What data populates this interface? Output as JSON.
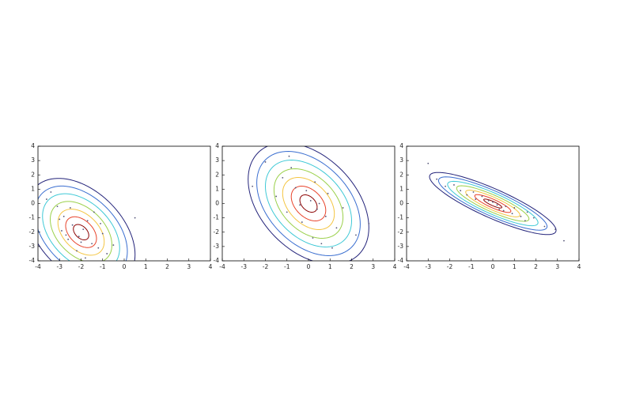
{
  "chart_data": [
    {
      "type": "contour",
      "x": [
        -2.1,
        -1.5,
        -2.8,
        -2.4,
        -1.2,
        -3.1,
        -1.9,
        -2.6,
        -0.8,
        -1.7,
        -3.4,
        -2.2,
        -1.0,
        -2.9,
        -0.5,
        -1.4,
        -2.5,
        -3.6,
        -2.0,
        -1.8,
        0.5,
        -2.7,
        -1.1,
        -3.0
      ],
      "y": [
        -2.3,
        -2.8,
        -0.9,
        -1.5,
        -3.1,
        -0.2,
        -1.8,
        -2.5,
        -3.5,
        -1.2,
        0.8,
        -3.3,
        -2.1,
        -1.9,
        -2.9,
        -0.6,
        -0.3,
        0.3,
        -2.7,
        -3.8,
        -1.0,
        -2.2,
        -1.4,
        -1.1
      ],
      "mean": [
        -2,
        -2
      ],
      "cov": [
        [
          0.8,
          -0.5
        ],
        [
          -0.5,
          1.8
        ]
      ],
      "levels": [
        0.4,
        0.8,
        1.2,
        1.6,
        2.0,
        2.4,
        2.8
      ],
      "colors": [
        "#8b0000",
        "#e8432b",
        "#f4c542",
        "#9ad04a",
        "#3fc9d6",
        "#3a6ed0",
        "#23237a"
      ],
      "point_color": "#555577",
      "xlim": [
        -4,
        4
      ],
      "ylim": [
        -4,
        4
      ],
      "xticks": [
        -4,
        -3,
        -2,
        -1,
        0,
        1,
        2,
        3,
        4
      ],
      "yticks": [
        -4,
        -3,
        -2,
        -1,
        0,
        1,
        2,
        3,
        4
      ]
    },
    {
      "type": "contour",
      "x": [
        0.1,
        -0.6,
        0.8,
        -1.2,
        0.4,
        -0.3,
        1.3,
        -1.5,
        0.9,
        -0.8,
        0.2,
        1.6,
        -0.1,
        -2.0,
        0.6,
        2.2,
        -1.0,
        0.3,
        -0.4,
        1.1,
        -2.6,
        2.8,
        -0.9,
        0.5
      ],
      "y": [
        0.2,
        1.1,
        -0.9,
        1.8,
        -0.4,
        -1.3,
        -1.7,
        0.5,
        0.7,
        2.5,
        -2.4,
        -0.3,
        0.9,
        2.9,
        -2.8,
        -2.2,
        -0.6,
        1.5,
        -0.1,
        -3.1,
        1.2,
        -1.4,
        3.3,
        0.0
      ],
      "mean": [
        0,
        0
      ],
      "cov": [
        [
          1.0,
          -0.6
        ],
        [
          -0.6,
          2.3
        ]
      ],
      "levels": [
        0.4,
        0.8,
        1.2,
        1.6,
        2.0,
        2.4,
        2.8
      ],
      "colors": [
        "#8b0000",
        "#e8432b",
        "#f4c542",
        "#9ad04a",
        "#3fc9d6",
        "#3a6ed0",
        "#23237a"
      ],
      "point_color": "#555577",
      "xlim": [
        -4,
        4
      ],
      "ylim": [
        -4,
        4
      ],
      "xticks": [
        -4,
        -3,
        -2,
        -1,
        0,
        1,
        2,
        3,
        4
      ],
      "yticks": [
        -4,
        -3,
        -2,
        -1,
        0,
        1,
        2,
        3,
        4
      ]
    },
    {
      "type": "contour",
      "x": [
        0.0,
        -0.5,
        0.6,
        -1.2,
        1.3,
        -1.8,
        1.9,
        0.3,
        -0.8,
        0.9,
        2.4,
        -2.2,
        -0.2,
        1.6,
        -1.5,
        0.5,
        2.9,
        -2.6,
        -3.0,
        3.3,
        1.0,
        -0.9,
        0.2,
        1.5
      ],
      "y": [
        0.1,
        0.5,
        -0.2,
        0.6,
        -0.9,
        1.3,
        -1.0,
        -0.4,
        0.3,
        -0.7,
        -1.6,
        1.2,
        0.2,
        -0.6,
        0.9,
        -0.5,
        -1.8,
        1.7,
        2.8,
        -2.6,
        -0.3,
        0.8,
        -0.1,
        -1.2
      ],
      "mean": [
        0,
        0
      ],
      "cov": [
        [
          1.1,
          -0.7
        ],
        [
          -0.7,
          0.6
        ]
      ],
      "levels": [
        0.4,
        0.8,
        1.2,
        1.6,
        2.0,
        2.4,
        2.8
      ],
      "colors": [
        "#8b0000",
        "#e8432b",
        "#f4c542",
        "#9ad04a",
        "#3fc9d6",
        "#3a6ed0",
        "#23237a"
      ],
      "point_color": "#555577",
      "xlim": [
        -4,
        4
      ],
      "ylim": [
        -4,
        4
      ],
      "xticks": [
        -4,
        -3,
        -2,
        -1,
        0,
        1,
        2,
        3,
        4
      ],
      "yticks": [
        -4,
        -3,
        -2,
        -1,
        0,
        1,
        2,
        3,
        4
      ]
    }
  ]
}
